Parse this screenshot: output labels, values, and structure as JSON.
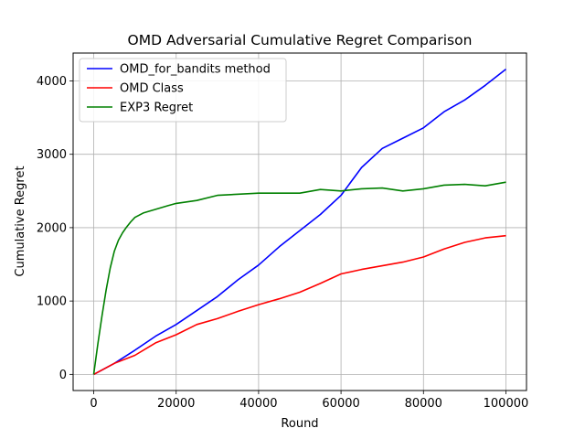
{
  "chart_data": {
    "type": "line",
    "title": "OMD Adversarial Cumulative Regret Comparison",
    "xlabel": "Round",
    "ylabel": "Cumulative Regret",
    "xlim": [
      -5000,
      105000
    ],
    "ylim": [
      -220,
      4380
    ],
    "xticks": [
      0,
      20000,
      40000,
      60000,
      80000,
      100000
    ],
    "xtick_labels": [
      "0",
      "20000",
      "40000",
      "60000",
      "80000",
      "100000"
    ],
    "yticks": [
      0,
      1000,
      2000,
      3000,
      4000
    ],
    "ytick_labels": [
      "0",
      "1000",
      "2000",
      "3000",
      "4000"
    ],
    "grid": true,
    "legend_position": "top-left",
    "series": [
      {
        "name": "OMD_for_bandits method",
        "color": "#0000ff",
        "points": [
          [
            0,
            0
          ],
          [
            5000,
            150
          ],
          [
            10000,
            330
          ],
          [
            15000,
            520
          ],
          [
            20000,
            680
          ],
          [
            25000,
            870
          ],
          [
            30000,
            1060
          ],
          [
            35000,
            1290
          ],
          [
            40000,
            1490
          ],
          [
            45000,
            1740
          ],
          [
            50000,
            1960
          ],
          [
            55000,
            2180
          ],
          [
            60000,
            2440
          ],
          [
            65000,
            2820
          ],
          [
            70000,
            3080
          ],
          [
            75000,
            3220
          ],
          [
            80000,
            3360
          ],
          [
            85000,
            3580
          ],
          [
            90000,
            3740
          ],
          [
            95000,
            3940
          ],
          [
            100000,
            4160
          ]
        ]
      },
      {
        "name": "OMD Class",
        "color": "#ff0000",
        "points": [
          [
            0,
            0
          ],
          [
            5000,
            150
          ],
          [
            10000,
            260
          ],
          [
            15000,
            430
          ],
          [
            20000,
            540
          ],
          [
            25000,
            680
          ],
          [
            30000,
            760
          ],
          [
            35000,
            860
          ],
          [
            40000,
            950
          ],
          [
            45000,
            1030
          ],
          [
            50000,
            1120
          ],
          [
            55000,
            1240
          ],
          [
            60000,
            1370
          ],
          [
            65000,
            1430
          ],
          [
            70000,
            1480
          ],
          [
            75000,
            1530
          ],
          [
            80000,
            1600
          ],
          [
            85000,
            1710
          ],
          [
            90000,
            1800
          ],
          [
            95000,
            1860
          ],
          [
            100000,
            1890
          ]
        ]
      },
      {
        "name": "EXP3 Regret",
        "color": "#008000",
        "points": [
          [
            0,
            0
          ],
          [
            1000,
            420
          ],
          [
            2000,
            800
          ],
          [
            3000,
            1150
          ],
          [
            4000,
            1450
          ],
          [
            5000,
            1680
          ],
          [
            6000,
            1830
          ],
          [
            7000,
            1930
          ],
          [
            8000,
            2010
          ],
          [
            9000,
            2080
          ],
          [
            10000,
            2140
          ],
          [
            12000,
            2200
          ],
          [
            15000,
            2250
          ],
          [
            18000,
            2300
          ],
          [
            20000,
            2330
          ],
          [
            25000,
            2370
          ],
          [
            30000,
            2440
          ],
          [
            40000,
            2470
          ],
          [
            50000,
            2470
          ],
          [
            55000,
            2520
          ],
          [
            60000,
            2500
          ],
          [
            65000,
            2530
          ],
          [
            70000,
            2540
          ],
          [
            75000,
            2500
          ],
          [
            80000,
            2530
          ],
          [
            85000,
            2580
          ],
          [
            90000,
            2590
          ],
          [
            95000,
            2570
          ],
          [
            100000,
            2620
          ]
        ]
      }
    ]
  }
}
